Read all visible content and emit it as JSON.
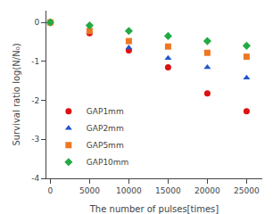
{
  "chart_data": {
    "type": "scatter",
    "xlabel": "The number of pulses[times]",
    "ylabel": "Survival ratio log(N/N₀)",
    "x": [
      0,
      5000,
      10000,
      15000,
      20000,
      25000
    ],
    "xlim": [
      -500,
      27000
    ],
    "ylim": [
      -4,
      0.3
    ],
    "xticks": [
      0,
      5000,
      10000,
      15000,
      20000,
      25000
    ],
    "yticks": [
      0,
      -1,
      -2,
      -3,
      -4
    ],
    "series": [
      {
        "name": "GAP1mm",
        "color": "#dd1111",
        "marker": "circle",
        "values": [
          0,
          -0.28,
          -0.72,
          -1.15,
          -1.82,
          -2.28
        ]
      },
      {
        "name": "GAP2mm",
        "color": "#2255cc",
        "marker": "triangle-up",
        "values": [
          0,
          -0.25,
          -0.65,
          -0.92,
          -1.15,
          -1.42
        ]
      },
      {
        "name": "GAP5mm",
        "color": "#ee7722",
        "marker": "square",
        "values": [
          0,
          -0.22,
          -0.48,
          -0.62,
          -0.78,
          -0.88
        ]
      },
      {
        "name": "GAP10mm",
        "color": "#22aa44",
        "marker": "diamond",
        "values": [
          0,
          -0.08,
          -0.22,
          -0.35,
          -0.48,
          -0.6
        ]
      }
    ],
    "legend": "lower left",
    "grid": false
  }
}
